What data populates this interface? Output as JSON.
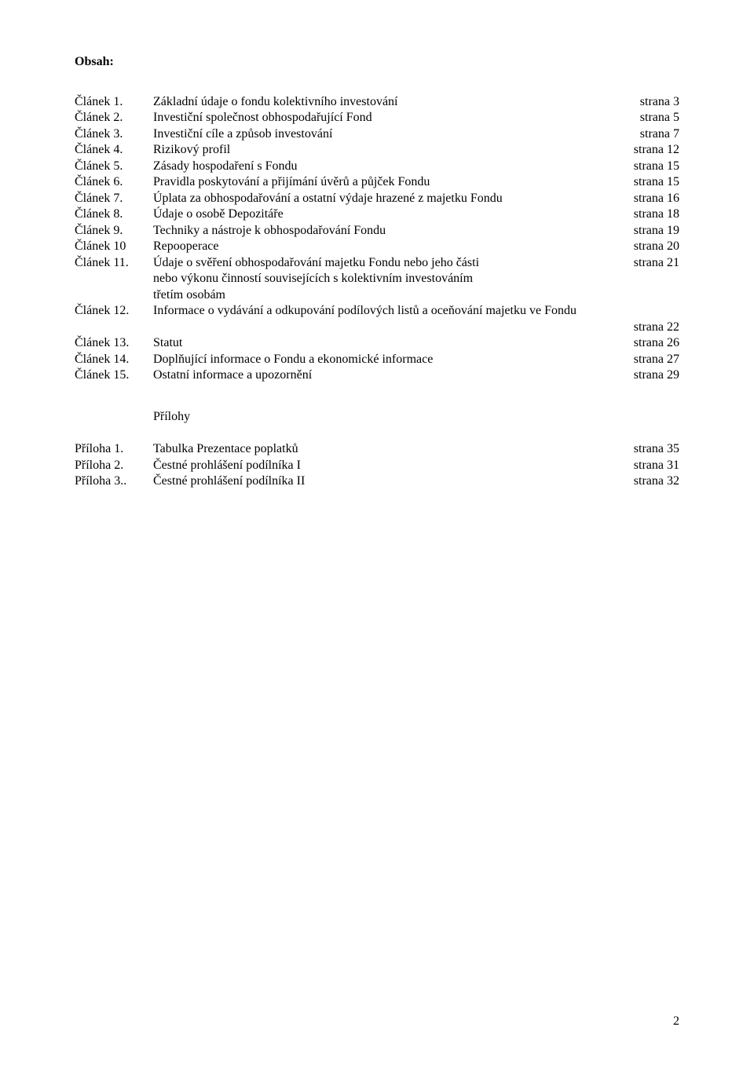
{
  "title": "Obsah:",
  "toc": [
    {
      "label": "Článek 1.",
      "text": "Základní údaje o fondu kolektivního investování",
      "page": "strana 3"
    },
    {
      "label": "Článek 2.",
      "text": "Investiční společnost obhospodařující Fond",
      "page": "strana 5"
    },
    {
      "label": "Článek 3.",
      "text": "Investiční cíle a způsob investování",
      "page": "strana 7"
    },
    {
      "label": "Článek 4.",
      "text": "Rizikový profil",
      "page": "strana 12"
    },
    {
      "label": "Článek 5.",
      "text": "Zásady hospodaření s  Fondu",
      "page": "strana 15"
    },
    {
      "label": "Článek 6.",
      "text": "Pravidla poskytování a přijímání úvěrů a půjček Fondu",
      "page": "strana 15"
    },
    {
      "label": "Článek 7.",
      "text": "Úplata za obhospodařování a ostatní výdaje hrazené z majetku Fondu",
      "page": "strana 16"
    },
    {
      "label": "Článek 8.",
      "text": "Údaje o osobě Depozitáře",
      "page": "strana 18"
    },
    {
      "label": "Článek 9.",
      "text": "Techniky a nástroje k obhospodařování Fondu",
      "page": "strana 19"
    },
    {
      "label": "Článek 10",
      "text": "Repooperace",
      "page": "strana 20"
    },
    {
      "label": "Článek 11.",
      "text": "Údaje o svěření obhospodařování majetku Fondu nebo jeho části",
      "page": "strana 21"
    },
    {
      "label": "",
      "text": "nebo výkonu činností souvisejících s kolektivním investováním",
      "page": ""
    },
    {
      "label": "",
      "text": "třetím osobám",
      "page": ""
    },
    {
      "label": "Článek 12.",
      "text": "Informace o vydávání a odkupování podílových listů a oceňování majetku ve Fondu",
      "page": ""
    },
    {
      "label": "",
      "text": "",
      "page": "strana 22"
    },
    {
      "label": "Článek 13.",
      "text": "Statut",
      "page": "strana 26"
    },
    {
      "label": "Článek 14.",
      "text": "Doplňující informace o Fondu a ekonomické informace",
      "page": "strana 27"
    },
    {
      "label": "Článek 15.",
      "text": "Ostatní informace a upozornění",
      "page": "strana 29"
    }
  ],
  "appendix_heading": "Přílohy",
  "appendix": [
    {
      "label": "Příloha 1.",
      "text": "Tabulka  Prezentace poplatků",
      "page": "strana 35"
    },
    {
      "label": "Příloha 2.",
      "text": " Čestné prohlášení podílníka I",
      "page": "strana 31"
    },
    {
      "label": "Příloha 3..",
      "text": " Čestné prohlášení podílníka II",
      "page": "strana 32"
    }
  ],
  "footer_page_number": "2"
}
